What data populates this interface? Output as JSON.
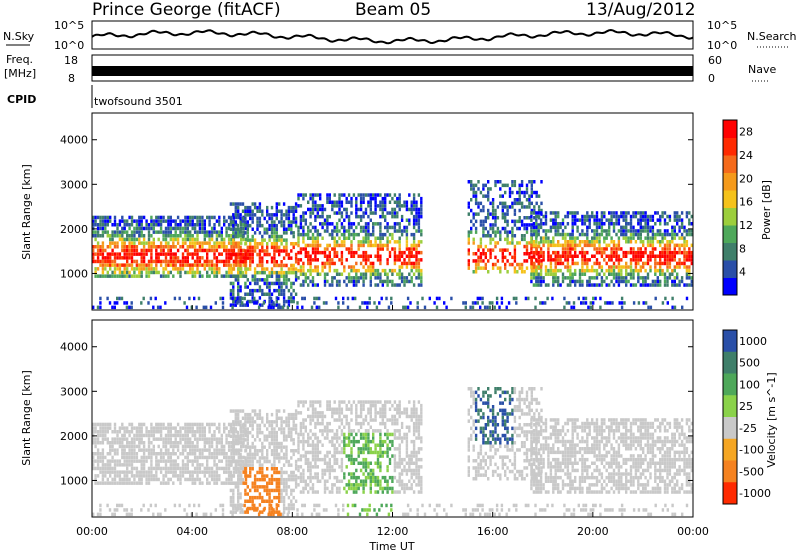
{
  "header": {
    "station": "Prince George (fitACF)",
    "beam": "Beam 05",
    "date": "13/Aug/2012"
  },
  "noise_panel": {
    "left_label": "N.Sky",
    "right_label": "N.Search",
    "left_ticks": [
      "10^5",
      "10^0"
    ],
    "right_ticks": [
      "10^5",
      "10^0"
    ]
  },
  "freq_panel": {
    "left_label_1": "Freq.",
    "left_label_2": "[MHz]",
    "right_label": "Nave",
    "left_ticks": [
      "18",
      "8"
    ],
    "right_ticks": [
      "60",
      "0"
    ]
  },
  "cpid_panel": {
    "label": "CPID",
    "value": "twofsound 3501"
  },
  "colors": {
    "power_scale": [
      "#0000ff",
      "#2a4fa8",
      "#3f7f6a",
      "#4ea85a",
      "#9cce3c",
      "#f5c21b",
      "#f59a1b",
      "#f56a1b",
      "#ff2a00",
      "#ff0000"
    ],
    "velocity_scale": [
      "#2a4fa8",
      "#3f7f6a",
      "#4ea85a",
      "#8ad24a",
      "#c9c9c9",
      "#f5a623",
      "#f58220",
      "#ff2a00"
    ]
  },
  "chart_data": [
    {
      "type": "heatmap",
      "name": "power",
      "ylabel": "Slant Range [km]",
      "yticks": [
        1000,
        2000,
        3000,
        4000
      ],
      "ylim": [
        180,
        4600
      ],
      "x_ticks": [
        "00:00",
        "04:00",
        "08:00",
        "12:00",
        "16:00",
        "20:00",
        "00:00"
      ],
      "xlim_hours": [
        0,
        24
      ],
      "colorbar": {
        "label": "Power [dB]",
        "tick_labels": [
          "28",
          "24",
          "20",
          "16",
          "12",
          "8",
          "4"
        ],
        "range": [
          0,
          30
        ]
      }
    },
    {
      "type": "heatmap",
      "name": "velocity",
      "ylabel": "Slant Range [km]",
      "yticks": [
        1000,
        2000,
        3000,
        4000
      ],
      "ylim": [
        180,
        4600
      ],
      "x_ticks": [
        "00:00",
        "04:00",
        "08:00",
        "12:00",
        "16:00",
        "20:00",
        "00:00"
      ],
      "xlim_hours": [
        0,
        24
      ],
      "xlabel": "Time UT",
      "colorbar": {
        "label": "Velocity [m s^-1]",
        "tick_labels": [
          "1000",
          "500",
          "100",
          "25",
          "-25",
          "-100",
          "-500",
          "-1000"
        ]
      }
    }
  ]
}
